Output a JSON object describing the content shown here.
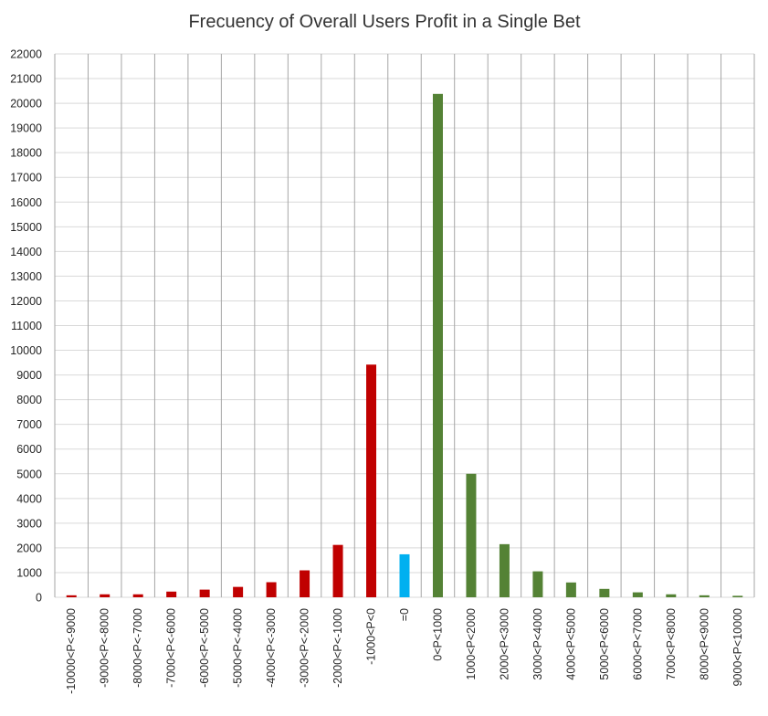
{
  "chart_data": {
    "type": "bar",
    "title": "Frecuency of Overall Users Profit in a Single Bet",
    "xlabel": "",
    "ylabel": "",
    "ylim": [
      0,
      22000
    ],
    "ytick_step": 1000,
    "grid": {
      "horizontal": true,
      "vertical": true
    },
    "legend": "none",
    "categories": [
      "-10000<P<-9000",
      "-9000<P<-8000",
      "-8000<P<-7000",
      "-7000<P<-6000",
      "-6000<P<-5000",
      "-5000<P<-4000",
      "-4000<P<-3000",
      "-3000<P<-2000",
      "-2000<P<-1000",
      "-1000<P<0",
      "=0",
      "0<P<1000",
      "1000<P<2000",
      "2000<P<3000",
      "3000<P<4000",
      "4000<P<5000",
      "5000<P<6000",
      "6000<P<7000",
      "7000<P<8000",
      "8000<P<9000",
      "9000<P<10000"
    ],
    "values": [
      80,
      120,
      120,
      230,
      310,
      420,
      610,
      1090,
      2120,
      9420,
      1740,
      20380,
      5000,
      2150,
      1050,
      600,
      340,
      200,
      120,
      80,
      60
    ],
    "bar_colors": [
      "#c00000",
      "#c00000",
      "#c00000",
      "#c00000",
      "#c00000",
      "#c00000",
      "#c00000",
      "#c00000",
      "#c00000",
      "#c00000",
      "#00b0f0",
      "#548235",
      "#548235",
      "#548235",
      "#548235",
      "#548235",
      "#548235",
      "#548235",
      "#548235",
      "#548235",
      "#548235"
    ],
    "colors": {
      "gridline": "#d9d9d9",
      "divider": "#a6a6a6",
      "axis_text": "#262626"
    }
  }
}
